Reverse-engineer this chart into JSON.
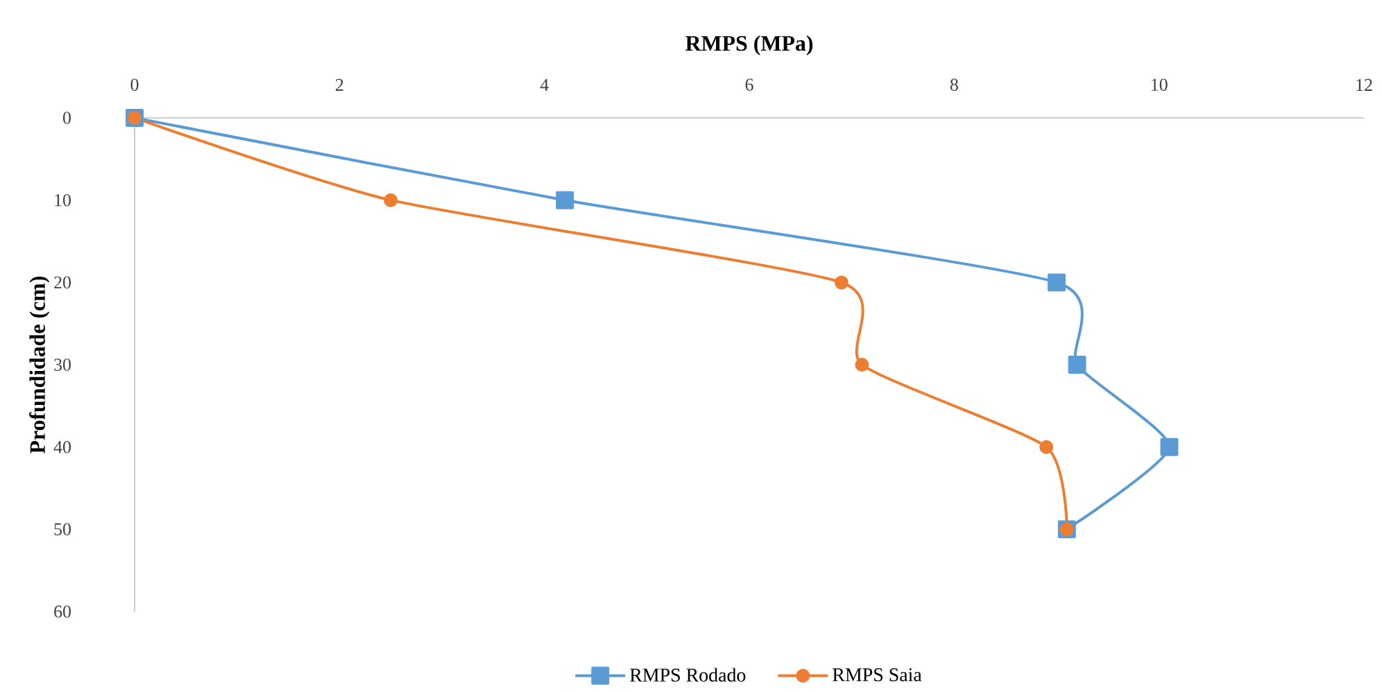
{
  "chart_data": {
    "type": "line",
    "xlabel": "RMPS (MPa)",
    "ylabel": "Profundidade (cm)",
    "xlim": [
      0,
      12
    ],
    "xticks": [
      0,
      2,
      4,
      6,
      8,
      10,
      12
    ],
    "ylim": [
      60,
      0
    ],
    "yticks": [
      0,
      10,
      20,
      30,
      40,
      50,
      60
    ],
    "series": [
      {
        "name": "RMPS Rodado",
        "color": "#5b9bd5",
        "marker": "square",
        "x": [
          0,
          4.2,
          9.0,
          9.2,
          10.1,
          9.1
        ],
        "values": [
          0,
          10,
          20,
          30,
          40,
          50
        ]
      },
      {
        "name": "RMPS Saia",
        "color": "#ed7d31",
        "marker": "circle",
        "x": [
          0,
          2.5,
          6.9,
          7.1,
          8.9,
          9.1
        ],
        "values": [
          0,
          10,
          20,
          30,
          40,
          50
        ]
      }
    ],
    "line_style": "solid",
    "legend": "bottom",
    "grid": false
  }
}
